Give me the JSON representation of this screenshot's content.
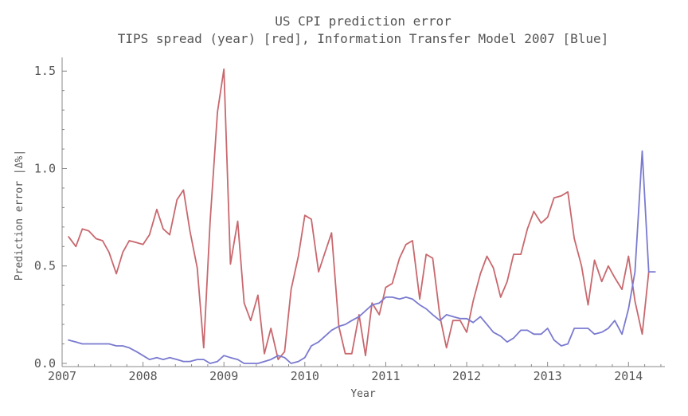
{
  "chart_data": {
    "type": "line",
    "title": "US CPI prediction error",
    "subtitle": "TIPS spread (year) [red], Information Transfer Model 2007 [Blue]",
    "xlabel": "Year",
    "ylabel": "Prediction error |Δ%|",
    "xlim": [
      2007,
      2014.45
    ],
    "ylim": [
      0,
      1.55
    ],
    "x_ticks": [
      2007,
      2008,
      2009,
      2010,
      2011,
      2012,
      2013,
      2014
    ],
    "x_tick_labels": [
      "2007",
      "2008",
      "2009",
      "2010",
      "2011",
      "2012",
      "2013",
      "2014"
    ],
    "y_ticks": [
      0,
      0.5,
      1.0,
      1.5
    ],
    "y_tick_labels": [
      "0.0",
      "0.5",
      "1.0",
      "1.5"
    ],
    "grid": false,
    "series": [
      {
        "color": "#c8686e",
        "x": [
          2007.08,
          2007.17,
          2007.25,
          2007.33,
          2007.42,
          2007.5,
          2007.58,
          2007.67,
          2007.75,
          2007.83,
          2007.92,
          2008.0,
          2008.08,
          2008.17,
          2008.25,
          2008.33,
          2008.42,
          2008.5,
          2008.58,
          2008.67,
          2008.75,
          2008.83,
          2008.92,
          2009.0,
          2009.08,
          2009.17,
          2009.25,
          2009.33,
          2009.42,
          2009.5,
          2009.58,
          2009.67,
          2009.75,
          2009.83,
          2009.92,
          2010.0,
          2010.08,
          2010.17,
          2010.25,
          2010.33,
          2010.42,
          2010.5,
          2010.58,
          2010.67,
          2010.75,
          2010.83,
          2010.92,
          2011.0,
          2011.08,
          2011.17,
          2011.25,
          2011.33,
          2011.42,
          2011.5,
          2011.58,
          2011.67,
          2011.75,
          2011.83,
          2011.92,
          2012.0,
          2012.08,
          2012.17,
          2012.25,
          2012.33,
          2012.42,
          2012.5,
          2012.58,
          2012.67,
          2012.75,
          2012.83,
          2012.92,
          2013.0,
          2013.08,
          2013.17,
          2013.25,
          2013.33,
          2013.42,
          2013.5,
          2013.58,
          2013.67,
          2013.75,
          2013.83,
          2013.92,
          2014.0,
          2014.08,
          2014.17,
          2014.25
        ],
        "values": [
          0.65,
          0.6,
          0.69,
          0.68,
          0.64,
          0.63,
          0.57,
          0.46,
          0.57,
          0.63,
          0.62,
          0.61,
          0.66,
          0.79,
          0.69,
          0.66,
          0.84,
          0.89,
          0.68,
          0.49,
          0.08,
          0.73,
          1.29,
          1.51,
          0.51,
          0.73,
          0.31,
          0.22,
          0.35,
          0.05,
          0.18,
          0.02,
          0.06,
          0.38,
          0.55,
          0.76,
          0.74,
          0.47,
          0.57,
          0.67,
          0.19,
          0.05,
          0.05,
          0.25,
          0.04,
          0.31,
          0.25,
          0.39,
          0.41,
          0.54,
          0.61,
          0.63,
          0.33,
          0.56,
          0.54,
          0.24,
          0.08,
          0.22,
          0.22,
          0.16,
          0.32,
          0.46,
          0.55,
          0.49,
          0.34,
          0.42,
          0.56,
          0.56,
          0.69,
          0.78,
          0.72,
          0.75,
          0.85,
          0.86,
          0.88,
          0.64,
          0.5,
          0.3,
          0.53,
          0.42,
          0.5,
          0.44,
          0.38,
          0.55,
          0.32,
          0.15,
          0.47
        ]
      },
      {
        "color": "#7a7ad0",
        "x": [
          2007.08,
          2007.17,
          2007.25,
          2007.33,
          2007.42,
          2007.5,
          2007.58,
          2007.67,
          2007.75,
          2007.83,
          2007.92,
          2008.0,
          2008.08,
          2008.17,
          2008.25,
          2008.33,
          2008.42,
          2008.5,
          2008.58,
          2008.67,
          2008.75,
          2008.83,
          2008.92,
          2009.0,
          2009.08,
          2009.17,
          2009.25,
          2009.33,
          2009.42,
          2009.5,
          2009.58,
          2009.67,
          2009.75,
          2009.83,
          2009.92,
          2010.0,
          2010.08,
          2010.17,
          2010.25,
          2010.33,
          2010.42,
          2010.5,
          2010.58,
          2010.67,
          2010.75,
          2010.83,
          2010.92,
          2011.0,
          2011.08,
          2011.17,
          2011.25,
          2011.33,
          2011.42,
          2011.5,
          2011.58,
          2011.67,
          2011.75,
          2011.83,
          2011.92,
          2012.0,
          2012.08,
          2012.17,
          2012.25,
          2012.33,
          2012.42,
          2012.5,
          2012.58,
          2012.67,
          2012.75,
          2012.83,
          2012.92,
          2013.0,
          2013.08,
          2013.17,
          2013.25,
          2013.33,
          2013.42,
          2013.5,
          2013.58,
          2013.67,
          2013.75,
          2013.83,
          2013.92,
          2014.0,
          2014.08,
          2014.17,
          2014.25,
          2014.33
        ],
        "values": [
          0.12,
          0.11,
          0.1,
          0.1,
          0.1,
          0.1,
          0.1,
          0.09,
          0.09,
          0.08,
          0.06,
          0.04,
          0.02,
          0.03,
          0.02,
          0.03,
          0.02,
          0.01,
          0.01,
          0.02,
          0.02,
          0.0,
          0.01,
          0.04,
          0.03,
          0.02,
          0.0,
          0.0,
          0.0,
          0.01,
          0.02,
          0.04,
          0.03,
          0.0,
          0.01,
          0.03,
          0.09,
          0.11,
          0.14,
          0.17,
          0.19,
          0.2,
          0.22,
          0.24,
          0.27,
          0.3,
          0.31,
          0.34,
          0.34,
          0.33,
          0.34,
          0.33,
          0.3,
          0.28,
          0.25,
          0.22,
          0.25,
          0.24,
          0.23,
          0.23,
          0.21,
          0.24,
          0.2,
          0.16,
          0.14,
          0.11,
          0.13,
          0.17,
          0.17,
          0.15,
          0.15,
          0.18,
          0.12,
          0.09,
          0.1,
          0.18,
          0.18,
          0.18,
          0.15,
          0.16,
          0.18,
          0.22,
          0.15,
          0.28,
          0.47,
          1.09,
          0.47,
          0.47
        ]
      }
    ]
  }
}
